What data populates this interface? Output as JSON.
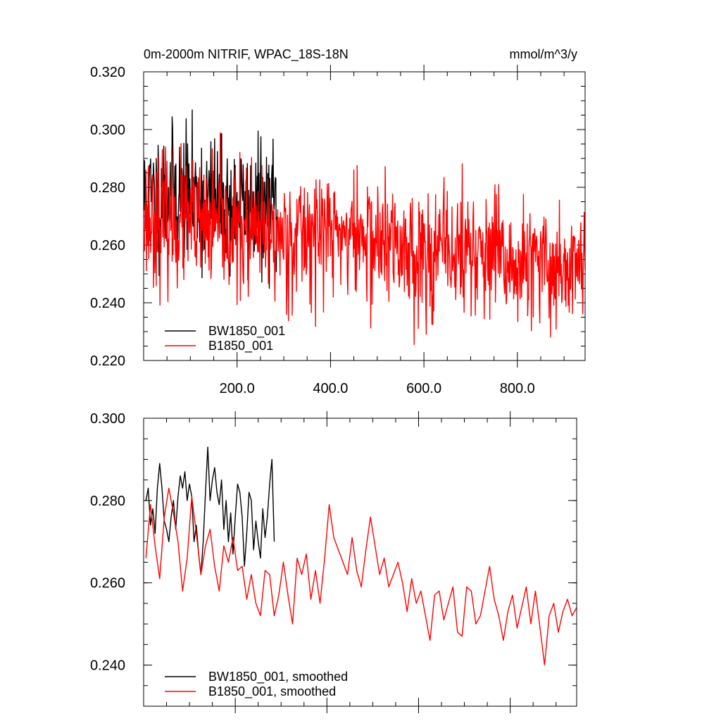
{
  "chart_data": [
    {
      "type": "line",
      "title": "0m-2000m NITRIF, WPAC_18S-18N",
      "units": "mmol/m^3/y",
      "xlim": [
        0,
        945
      ],
      "ylim": [
        0.22,
        0.32
      ],
      "x_ticks": [
        200,
        400,
        600,
        800
      ],
      "x_tick_labels": [
        "200.0",
        "400.0",
        "600.0",
        "800.0"
      ],
      "y_ticks": [
        0.22,
        0.24,
        0.26,
        0.28,
        0.3,
        0.32
      ],
      "y_tick_labels": [
        "0.220",
        "0.240",
        "0.260",
        "0.280",
        "0.300",
        "0.320"
      ],
      "legend_position": "bottom-left",
      "series": [
        {
          "name": "BW1850_001",
          "color": "#000000",
          "x_start": 1,
          "x_step": 1,
          "length": 285,
          "seed": 11,
          "mean": 0.2745,
          "noise_sd": 0.011,
          "keypoints": [
            [
              1,
              0.275
            ],
            [
              60,
              0.279
            ],
            [
              120,
              0.276
            ],
            [
              180,
              0.274
            ],
            [
              240,
              0.272
            ],
            [
              285,
              0.274
            ]
          ],
          "max": 0.315,
          "min": 0.245
        },
        {
          "name": "B1850_001",
          "color": "#ff0000",
          "x_start": 1,
          "x_step": 1,
          "length": 945,
          "seed": 23,
          "mean": 0.262,
          "noise_sd": 0.011,
          "keypoints": [
            [
              1,
              0.27
            ],
            [
              100,
              0.267
            ],
            [
              200,
              0.264
            ],
            [
              300,
              0.263
            ],
            [
              400,
              0.265
            ],
            [
              500,
              0.261
            ],
            [
              600,
              0.257
            ],
            [
              700,
              0.258
            ],
            [
              800,
              0.252
            ],
            [
              945,
              0.253
            ]
          ],
          "max": 0.313,
          "min": 0.223
        }
      ]
    },
    {
      "type": "line",
      "title": "",
      "xlim": [
        0,
        945
      ],
      "ylim": [
        0.23,
        0.3
      ],
      "x_ticks": [
        200,
        400,
        600,
        800
      ],
      "y_ticks": [
        0.24,
        0.26,
        0.28,
        0.3
      ],
      "y_tick_labels": [
        "0.240",
        "0.260",
        "0.280",
        "0.300"
      ],
      "legend_position": "bottom-left",
      "series": [
        {
          "name": "BW1850_001, smoothed",
          "color": "#000000",
          "x": [
            5,
            10,
            15,
            20,
            25,
            30,
            35,
            40,
            45,
            50,
            55,
            60,
            65,
            70,
            75,
            80,
            85,
            90,
            95,
            100,
            105,
            110,
            115,
            120,
            125,
            130,
            135,
            140,
            145,
            150,
            155,
            160,
            165,
            170,
            175,
            180,
            185,
            190,
            195,
            200,
            205,
            210,
            215,
            220,
            225,
            230,
            235,
            240,
            245,
            250,
            255,
            260,
            265,
            270,
            275,
            280,
            285
          ],
          "values": [
            0.28,
            0.283,
            0.274,
            0.278,
            0.272,
            0.283,
            0.289,
            0.283,
            0.275,
            0.273,
            0.27,
            0.276,
            0.28,
            0.273,
            0.281,
            0.286,
            0.283,
            0.287,
            0.28,
            0.284,
            0.281,
            0.27,
            0.274,
            0.267,
            0.262,
            0.27,
            0.282,
            0.293,
            0.28,
            0.285,
            0.288,
            0.282,
            0.279,
            0.285,
            0.273,
            0.28,
            0.27,
            0.277,
            0.267,
            0.276,
            0.284,
            0.282,
            0.276,
            0.264,
            0.272,
            0.282,
            0.28,
            0.268,
            0.275,
            0.27,
            0.266,
            0.278,
            0.271,
            0.276,
            0.284,
            0.29,
            0.27
          ]
        },
        {
          "name": "B1850_001, smoothed",
          "color": "#ff0000",
          "x": [
            5,
            15,
            25,
            35,
            45,
            55,
            65,
            75,
            85,
            95,
            105,
            115,
            125,
            135,
            145,
            155,
            165,
            175,
            185,
            195,
            205,
            215,
            225,
            235,
            245,
            255,
            265,
            275,
            285,
            295,
            305,
            315,
            325,
            335,
            345,
            355,
            365,
            375,
            385,
            395,
            405,
            415,
            425,
            435,
            445,
            455,
            465,
            475,
            485,
            495,
            505,
            515,
            525,
            535,
            545,
            555,
            565,
            575,
            585,
            595,
            605,
            615,
            625,
            635,
            645,
            655,
            665,
            675,
            685,
            695,
            705,
            715,
            725,
            735,
            745,
            755,
            765,
            775,
            785,
            795,
            805,
            815,
            825,
            835,
            845,
            855,
            865,
            875,
            885,
            895,
            905,
            915,
            925,
            935,
            945
          ],
          "values": [
            0.266,
            0.279,
            0.269,
            0.261,
            0.276,
            0.283,
            0.277,
            0.27,
            0.258,
            0.266,
            0.281,
            0.272,
            0.262,
            0.269,
            0.273,
            0.264,
            0.258,
            0.269,
            0.265,
            0.271,
            0.263,
            0.264,
            0.256,
            0.262,
            0.255,
            0.252,
            0.263,
            0.262,
            0.252,
            0.257,
            0.265,
            0.257,
            0.25,
            0.266,
            0.262,
            0.267,
            0.256,
            0.263,
            0.255,
            0.266,
            0.279,
            0.271,
            0.268,
            0.265,
            0.262,
            0.271,
            0.263,
            0.259,
            0.268,
            0.276,
            0.269,
            0.262,
            0.266,
            0.259,
            0.262,
            0.265,
            0.26,
            0.253,
            0.261,
            0.255,
            0.258,
            0.252,
            0.246,
            0.257,
            0.258,
            0.251,
            0.255,
            0.259,
            0.248,
            0.247,
            0.259,
            0.258,
            0.25,
            0.252,
            0.258,
            0.264,
            0.256,
            0.252,
            0.246,
            0.253,
            0.257,
            0.249,
            0.254,
            0.259,
            0.25,
            0.258,
            0.249,
            0.24,
            0.252,
            0.255,
            0.248,
            0.253,
            0.256,
            0.252,
            0.254
          ]
        }
      ]
    }
  ]
}
